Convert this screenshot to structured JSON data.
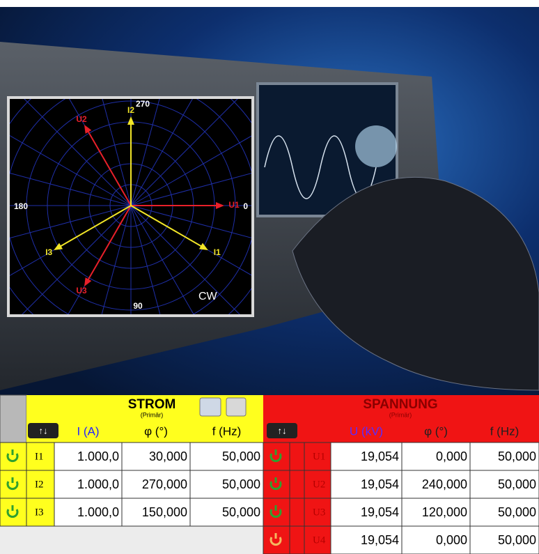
{
  "phasor": {
    "axis_labels": {
      "top": "270",
      "left": "180",
      "right": "0",
      "bottom": "90"
    },
    "direction": "CW",
    "vectors": [
      {
        "label": "U1",
        "angle": 0,
        "color": "#e8202a"
      },
      {
        "label": "U2",
        "angle": 240,
        "color": "#e8202a"
      },
      {
        "label": "U3",
        "angle": 120,
        "color": "#e8202a"
      },
      {
        "label": "I1",
        "angle": 30,
        "color": "#f2e628"
      },
      {
        "label": "I2",
        "angle": 270,
        "color": "#f2e628"
      },
      {
        "label": "I3",
        "angle": 150,
        "color": "#f2e628"
      }
    ]
  },
  "table": {
    "current": {
      "title": "STROM",
      "subtitle": "(Primär)",
      "headers": [
        "I (A)",
        "φ (°)",
        "f (Hz)"
      ],
      "rows": [
        [
          "I1",
          "1.000,0",
          "30,000",
          "50,000"
        ],
        [
          "I2",
          "1.000,0",
          "270,000",
          "50,000"
        ],
        [
          "I3",
          "1.000,0",
          "150,000",
          "50,000"
        ]
      ]
    },
    "voltage": {
      "title": "SPANNUNG",
      "subtitle": "(Primär)",
      "headers": [
        "U (kV)",
        "φ (°)",
        "f (Hz)"
      ],
      "rows": [
        [
          "U1",
          "19,054",
          "0,000",
          "50,000"
        ],
        [
          "U2",
          "19,054",
          "240,000",
          "50,000"
        ],
        [
          "U3",
          "19,054",
          "120,000",
          "50,000"
        ],
        [
          "U4",
          "19,054",
          "0,000",
          "50,000"
        ]
      ]
    }
  }
}
